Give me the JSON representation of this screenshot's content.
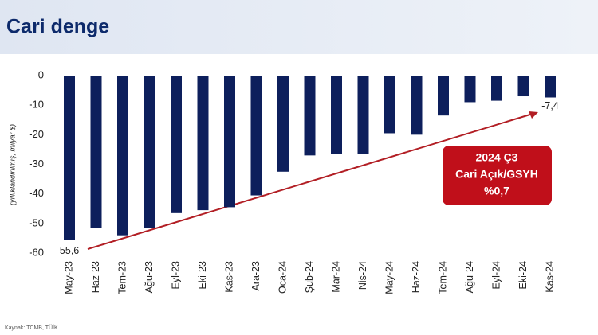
{
  "chart_data": {
    "type": "bar",
    "title": "Cari denge",
    "y_label": "(yıllıklandırılmış, milyar $)",
    "categories": [
      "May-23",
      "Haz-23",
      "Tem-23",
      "Ağu-23",
      "Eyl-23",
      "Eki-23",
      "Kas-23",
      "Ara-23",
      "Oca-24",
      "Şub-24",
      "Mar-24",
      "Nis-24",
      "May-24",
      "Haz-24",
      "Tem-24",
      "Ağu-24",
      "Eyl-24",
      "Eki-24",
      "Kas-24"
    ],
    "values": [
      -55.6,
      -51.5,
      -54,
      -51.5,
      -46.5,
      -45.5,
      -44.5,
      -40.5,
      -32.5,
      -27,
      -26.5,
      -26.5,
      -19.5,
      -20,
      -13.5,
      -9,
      -8.5,
      -7,
      -7.4
    ],
    "value_labels": [
      "-55,6",
      null,
      null,
      null,
      null,
      null,
      null,
      null,
      null,
      null,
      null,
      null,
      null,
      null,
      null,
      null,
      null,
      null,
      "-7,4"
    ],
    "color": "#0d1f5c",
    "ylim": [
      -60,
      0
    ],
    "yticks": [
      0,
      -10,
      -20,
      -30,
      -40,
      -50,
      -60
    ],
    "annotation": [
      "2024 Ç3",
      "Cari Açık/GSYH",
      "%0,7"
    ],
    "source": "Kaynak: TCMB, TÜİK"
  }
}
